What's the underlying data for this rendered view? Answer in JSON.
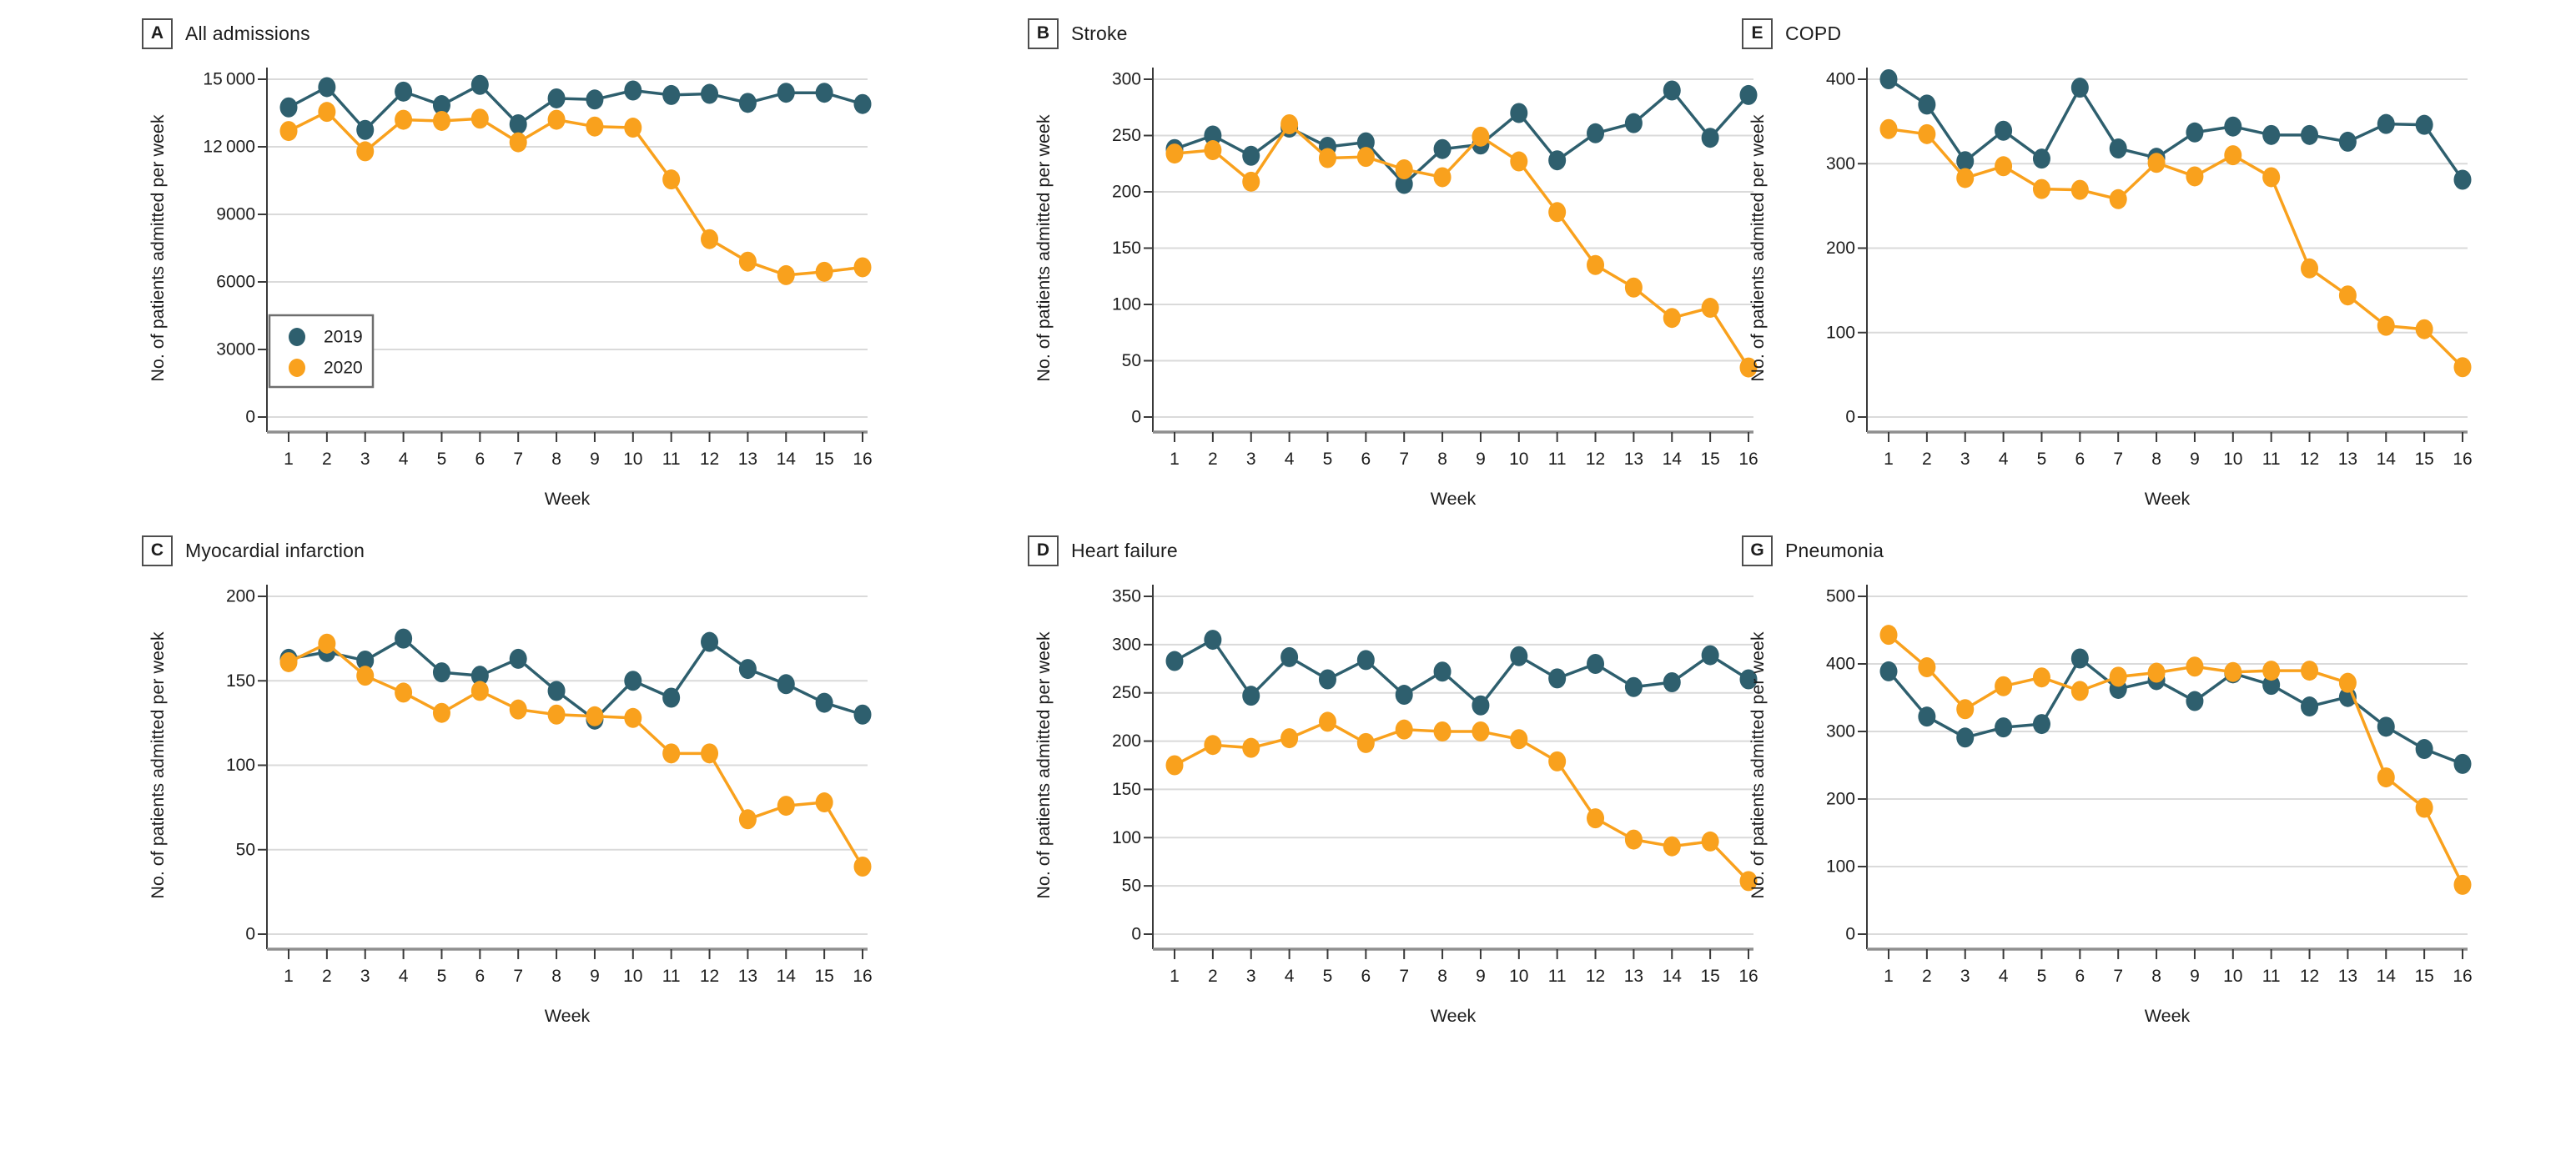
{
  "figure": {
    "x_label": "Week",
    "y_label": "No. of patients admitted per week",
    "weeks": [
      "1",
      "2",
      "3",
      "4",
      "5",
      "6",
      "7",
      "8",
      "9",
      "10",
      "11",
      "12",
      "13",
      "14",
      "15",
      "16"
    ],
    "legend": {
      "position": "inside-left panel A",
      "entries": [
        {
          "label": "2019",
          "color": "#2e5f6e"
        },
        {
          "label": "2020",
          "color": "#f9a11d"
        }
      ]
    },
    "colors": {
      "series_2019": "#2e5f6e",
      "series_2020": "#f9a11d",
      "gridline": "#dadada",
      "bottom_axis": "#8f8f8f",
      "left_axis": "#3a3a3a",
      "text": "#1d1d1d",
      "legend_border": "#6e6e6e"
    }
  },
  "chart_data": [
    {
      "type": "line",
      "panel_label": "A",
      "title": "All admissions",
      "xlabel": "Week",
      "ylabel": "No. of patients admitted per week",
      "ylim": [
        0,
        15000
      ],
      "yticks": [
        0,
        3000,
        6000,
        9000,
        12000,
        15000
      ],
      "ytick_labels": [
        "0",
        "3000",
        "6000",
        "9000",
        "12 000",
        "15 000"
      ],
      "grid": true,
      "show_legend": true,
      "series": [
        {
          "name": "2019",
          "values": [
            13750,
            14650,
            12750,
            14450,
            13850,
            14750,
            13000,
            14150,
            14100,
            14500,
            14300,
            14350,
            13950,
            14400,
            14400,
            13900
          ]
        },
        {
          "name": "2020",
          "values": [
            12700,
            13550,
            11800,
            13200,
            13150,
            13250,
            12200,
            13200,
            12900,
            12850,
            10550,
            7900,
            6900,
            6300,
            6450,
            6650
          ]
        }
      ]
    },
    {
      "type": "line",
      "panel_label": "B",
      "title": "Stroke",
      "xlabel": "Week",
      "ylabel": "No. of patients admitted per week",
      "ylim": [
        0,
        300
      ],
      "yticks": [
        0,
        50,
        100,
        150,
        200,
        250,
        300
      ],
      "ytick_labels": [
        "0",
        "50",
        "100",
        "150",
        "200",
        "250",
        "300"
      ],
      "grid": true,
      "show_legend": false,
      "series": [
        {
          "name": "2019",
          "values": [
            238,
            250,
            232,
            257,
            240,
            244,
            207,
            238,
            242,
            270,
            228,
            252,
            261,
            290,
            248,
            286
          ]
        },
        {
          "name": "2020",
          "values": [
            234,
            237,
            209,
            260,
            230,
            231,
            220,
            213,
            249,
            227,
            182,
            135,
            115,
            88,
            97,
            44
          ]
        }
      ]
    },
    {
      "type": "line",
      "panel_label": "E",
      "title": "COPD",
      "xlabel": "Week",
      "ylabel": "No. of patients admitted per week",
      "ylim": [
        0,
        400
      ],
      "yticks": [
        0,
        100,
        200,
        300,
        400
      ],
      "ytick_labels": [
        "0",
        "100",
        "200",
        "300",
        "400"
      ],
      "grid": true,
      "show_legend": false,
      "series": [
        {
          "name": "2019",
          "values": [
            400,
            370,
            303,
            339,
            306,
            390,
            318,
            307,
            337,
            344,
            334,
            334,
            326,
            347,
            346,
            281
          ]
        },
        {
          "name": "2020",
          "values": [
            341,
            335,
            283,
            297,
            270,
            269,
            258,
            301,
            285,
            310,
            284,
            176,
            144,
            108,
            104,
            59
          ]
        }
      ]
    },
    {
      "type": "line",
      "panel_label": "C",
      "title": "Myocardial infarction",
      "xlabel": "Week",
      "ylabel": "No. of patients admitted per week",
      "ylim": [
        0,
        200
      ],
      "yticks": [
        0,
        50,
        100,
        150,
        200
      ],
      "ytick_labels": [
        "0",
        "50",
        "100",
        "150",
        "200"
      ],
      "grid": true,
      "show_legend": false,
      "series": [
        {
          "name": "2019",
          "values": [
            163,
            167,
            162,
            175,
            155,
            153,
            163,
            144,
            127,
            150,
            140,
            173,
            157,
            148,
            137,
            130
          ]
        },
        {
          "name": "2020",
          "values": [
            161,
            172,
            153,
            143,
            131,
            144,
            133,
            130,
            129,
            128,
            107,
            107,
            68,
            76,
            78,
            40
          ]
        }
      ]
    },
    {
      "type": "line",
      "panel_label": "D",
      "title": "Heart failure",
      "xlabel": "Week",
      "ylabel": "No. of patients admitted per week",
      "ylim": [
        0,
        350
      ],
      "yticks": [
        0,
        50,
        100,
        150,
        200,
        250,
        300,
        350
      ],
      "ytick_labels": [
        "0",
        "50",
        "100",
        "150",
        "200",
        "250",
        "300",
        "350"
      ],
      "grid": true,
      "show_legend": false,
      "series": [
        {
          "name": "2019",
          "values": [
            283,
            305,
            247,
            287,
            264,
            284,
            248,
            272,
            237,
            288,
            265,
            280,
            256,
            261,
            289,
            264
          ]
        },
        {
          "name": "2020",
          "values": [
            175,
            196,
            193,
            203,
            220,
            198,
            212,
            210,
            210,
            202,
            179,
            120,
            98,
            91,
            96,
            55
          ]
        }
      ]
    },
    {
      "type": "line",
      "panel_label": "G",
      "title": "Pneumonia",
      "xlabel": "Week",
      "ylabel": "No. of patients admitted per week",
      "ylim": [
        0,
        500
      ],
      "yticks": [
        0,
        100,
        200,
        300,
        400,
        500
      ],
      "ytick_labels": [
        "0",
        "100",
        "200",
        "300",
        "400",
        "500"
      ],
      "grid": true,
      "show_legend": false,
      "series": [
        {
          "name": "2019",
          "values": [
            389,
            322,
            291,
            306,
            311,
            408,
            363,
            376,
            345,
            386,
            369,
            337,
            351,
            307,
            274,
            252
          ]
        },
        {
          "name": "2020",
          "values": [
            443,
            395,
            333,
            367,
            380,
            360,
            381,
            387,
            396,
            388,
            390,
            390,
            372,
            232,
            187,
            73
          ]
        }
      ]
    }
  ]
}
